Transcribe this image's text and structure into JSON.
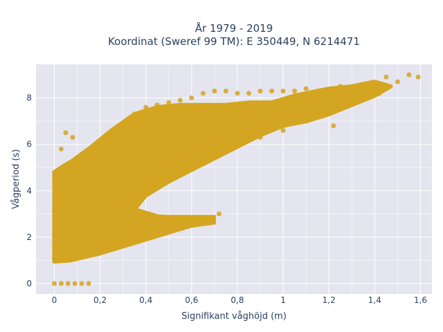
{
  "chart_data": {
    "type": "scatter",
    "title": [
      "År 1979 - 2019",
      "Koordinat (Sweref 99 TM): E 350449, N 6214471"
    ],
    "xlabel": "Signifikant våghöjd (m)",
    "ylabel": "Vågperiod (s)",
    "xlim": [
      -0.08,
      1.65
    ],
    "ylim": [
      -0.45,
      9.45
    ],
    "x_ticks": [
      0,
      0.2,
      0.4,
      0.6,
      0.8,
      1,
      1.2,
      1.4,
      1.6
    ],
    "x_tick_labels": [
      "0",
      "0,2",
      "0,4",
      "0,6",
      "0,8",
      "1",
      "1,2",
      "1,4",
      "1,6"
    ],
    "y_ticks": [
      0,
      2,
      4,
      6,
      8
    ],
    "y_tick_labels": [
      "0",
      "2",
      "4",
      "6",
      "8"
    ],
    "grid": true,
    "marker_color": "#d4a520",
    "plot_bg": "#e5e5ef",
    "series": [
      {
        "points": [
          [
            0.0,
            0.0
          ],
          [
            0.03,
            0.0
          ],
          [
            0.06,
            0.0
          ],
          [
            0.09,
            0.0
          ],
          [
            0.12,
            0.0
          ],
          [
            0.15,
            0.0
          ],
          [
            0.0,
            1.1
          ],
          [
            0.0,
            1.6
          ],
          [
            0.0,
            2.1
          ],
          [
            0.0,
            3.1
          ],
          [
            0.02,
            4.8
          ],
          [
            0.03,
            5.8
          ],
          [
            0.05,
            6.5
          ],
          [
            0.08,
            6.3
          ],
          [
            0.1,
            4.5
          ],
          [
            0.15,
            5.2
          ],
          [
            0.2,
            5.8
          ],
          [
            0.25,
            6.5
          ],
          [
            0.3,
            6.9
          ],
          [
            0.35,
            7.3
          ],
          [
            0.4,
            7.6
          ],
          [
            0.45,
            7.7
          ],
          [
            0.5,
            7.8
          ],
          [
            0.55,
            7.9
          ],
          [
            0.6,
            8.0
          ],
          [
            0.65,
            8.2
          ],
          [
            0.7,
            8.3
          ],
          [
            0.75,
            8.3
          ],
          [
            0.8,
            8.2
          ],
          [
            0.85,
            8.2
          ],
          [
            0.9,
            8.3
          ],
          [
            0.95,
            8.3
          ],
          [
            1.0,
            8.3
          ],
          [
            1.05,
            8.3
          ],
          [
            1.1,
            8.4
          ],
          [
            1.15,
            8.3
          ],
          [
            1.2,
            8.2
          ],
          [
            1.25,
            8.5
          ],
          [
            1.3,
            8.4
          ],
          [
            1.35,
            8.5
          ],
          [
            1.4,
            8.4
          ],
          [
            1.45,
            8.9
          ],
          [
            1.5,
            8.7
          ],
          [
            1.55,
            9.0
          ],
          [
            1.59,
            8.9
          ],
          [
            1.42,
            8.2
          ],
          [
            1.32,
            8.1
          ],
          [
            1.22,
            6.8
          ],
          [
            1.1,
            7.0
          ],
          [
            1.0,
            6.6
          ],
          [
            0.9,
            6.3
          ],
          [
            0.8,
            6.0
          ],
          [
            0.7,
            5.7
          ],
          [
            0.6,
            5.3
          ],
          [
            0.5,
            4.7
          ],
          [
            0.4,
            4.0
          ],
          [
            0.3,
            3.2
          ],
          [
            0.2,
            2.4
          ],
          [
            0.1,
            1.6
          ],
          [
            0.72,
            3.0
          ],
          [
            0.6,
            2.8
          ],
          [
            0.5,
            2.6
          ],
          [
            0.4,
            2.4
          ],
          [
            0.3,
            2.1
          ],
          [
            0.2,
            1.8
          ],
          [
            0.6,
            6.3
          ],
          [
            0.45,
            5.8
          ],
          [
            0.35,
            5.2
          ]
        ]
      }
    ]
  }
}
